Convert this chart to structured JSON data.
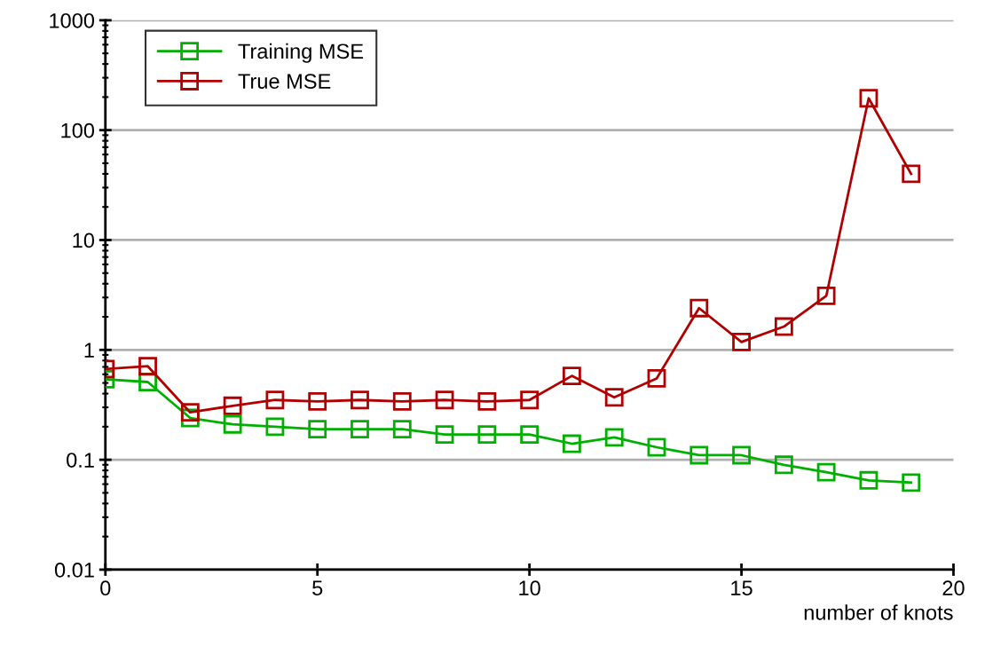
{
  "chart_data": {
    "type": "line",
    "xlabel": "number of knots",
    "x": [
      0,
      1,
      2,
      3,
      4,
      5,
      6,
      7,
      8,
      9,
      10,
      11,
      12,
      13,
      14,
      15,
      16,
      17,
      18,
      19
    ],
    "series": [
      {
        "name": "Training MSE",
        "color": "#00b000",
        "values": [
          0.54,
          0.51,
          0.24,
          0.21,
          0.2,
          0.19,
          0.19,
          0.19,
          0.17,
          0.17,
          0.17,
          0.14,
          0.16,
          0.13,
          0.11,
          0.11,
          0.09,
          0.077,
          0.065,
          0.062
        ]
      },
      {
        "name": "True MSE",
        "color": "#b00000",
        "values": [
          0.67,
          0.71,
          0.27,
          0.31,
          0.35,
          0.34,
          0.35,
          0.34,
          0.35,
          0.34,
          0.35,
          0.58,
          0.37,
          0.55,
          2.4,
          1.18,
          1.63,
          3.1,
          195,
          40
        ]
      }
    ],
    "log": "y",
    "xlim": [
      0,
      20
    ],
    "xticks": [
      0,
      5,
      10,
      15,
      20
    ],
    "ylim": [
      0.01,
      1000
    ],
    "yticks": [
      {
        "value": 0.01,
        "label": "0.01"
      },
      {
        "value": 0.1,
        "label": "0.1"
      },
      {
        "value": 1,
        "label": "1"
      },
      {
        "value": 10,
        "label": "10"
      },
      {
        "value": 100,
        "label": "100"
      },
      {
        "value": 1000,
        "label": "1000"
      }
    ],
    "grid": "y",
    "legend": "top left",
    "marker": "square",
    "line_style": "solid"
  }
}
